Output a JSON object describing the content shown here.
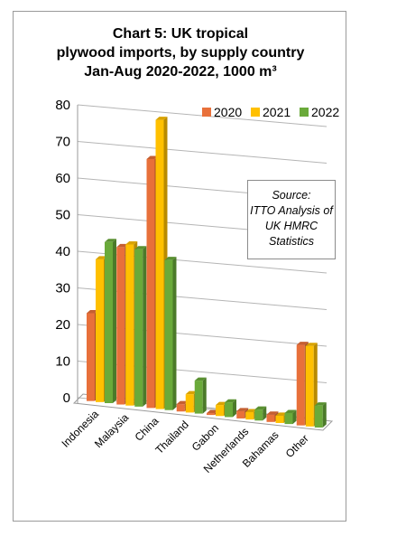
{
  "title_lines": [
    "Chart 5: UK tropical",
    "plywood imports, by supply country",
    "Jan-Aug 2020-2022, 1000 m³"
  ],
  "source_lines": [
    "Source:",
    "ITTO Analysis of",
    "UK HMRC",
    "Statistics"
  ],
  "chart_data": {
    "type": "bar",
    "title": "Chart 5: UK tropical plywood imports, by supply country Jan-Aug 2020-2022, 1000 m³",
    "categories": [
      "Indonesia",
      "Malaysia",
      "China",
      "Thailand",
      "Gabon",
      "Netherlands",
      "Bahamas",
      "Other"
    ],
    "series": [
      {
        "name": "2020",
        "values": [
          24,
          43,
          68,
          2,
          0.5,
          2,
          2,
          22
        ],
        "color": "#E8703A"
      },
      {
        "name": "2021",
        "values": [
          39,
          44,
          79,
          5,
          3,
          2,
          2,
          22
        ],
        "color": "#FFC000"
      },
      {
        "name": "2022",
        "values": [
          44,
          43,
          41,
          9,
          4,
          3,
          3,
          6
        ],
        "color": "#6AAA3A"
      }
    ],
    "y_ticks": [
      "0",
      "10",
      "20",
      "30",
      "40",
      "50",
      "60",
      "70",
      "80"
    ],
    "ylim": [
      0,
      80
    ],
    "legend_position": "top-right",
    "grid": true,
    "style": "3d-clustered-column"
  }
}
